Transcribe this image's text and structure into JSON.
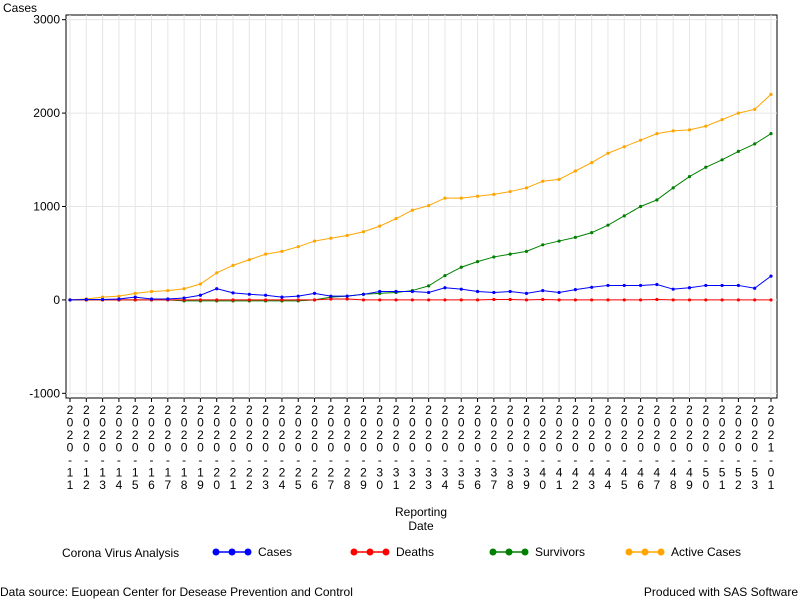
{
  "chart_data": {
    "type": "line",
    "ylabel": "Cases",
    "xlabel_line1": "Reporting",
    "xlabel_line2": "Date",
    "ylim": [
      -1050,
      3050
    ],
    "yticks": [
      "-1000",
      "0",
      "1000",
      "2000",
      "3000"
    ],
    "grid": true,
    "x_tick_labels": [
      "2020-11",
      "2020-12",
      "2020-13",
      "2020-14",
      "2020-15",
      "2020-16",
      "2020-17",
      "2020-18",
      "2020-19",
      "2020-20",
      "2020-21",
      "2020-22",
      "2020-23",
      "2020-24",
      "2020-25",
      "2020-26",
      "2020-27",
      "2020-28",
      "2020-29",
      "2020-30",
      "2020-31",
      "2020-32",
      "2020-33",
      "2020-34",
      "2020-35",
      "2020-36",
      "2020-37",
      "2020-38",
      "2020-39",
      "2020-40",
      "2020-41",
      "2020-42",
      "2020-43",
      "2020-44",
      "2020-45",
      "2020-46",
      "2020-47",
      "2020-48",
      "2020-49",
      "2020-50",
      "2020-51",
      "2020-52",
      "2020-53",
      "2021-01"
    ],
    "legend_title": "Corona Virus Analysis",
    "series": [
      {
        "name": "Cases",
        "color": "#0000ff",
        "values": [
          0,
          5,
          5,
          10,
          30,
          10,
          10,
          20,
          50,
          120,
          75,
          60,
          50,
          30,
          40,
          70,
          40,
          40,
          60,
          90,
          90,
          90,
          80,
          130,
          115,
          90,
          80,
          90,
          70,
          100,
          80,
          110,
          135,
          155,
          155,
          155,
          165,
          115,
          130,
          155,
          155,
          155,
          125,
          255
        ]
      },
      {
        "name": "Deaths",
        "color": "#ff0000",
        "values": [
          0,
          0,
          0,
          0,
          0,
          0,
          0,
          0,
          0,
          0,
          0,
          0,
          0,
          0,
          0,
          0,
          10,
          10,
          0,
          0,
          0,
          0,
          0,
          0,
          0,
          0,
          5,
          5,
          0,
          5,
          0,
          0,
          0,
          0,
          0,
          0,
          5,
          0,
          0,
          0,
          0,
          0,
          0,
          0
        ]
      },
      {
        "name": "Survivors",
        "color": "#008000",
        "values": [
          0,
          0,
          0,
          0,
          0,
          0,
          0,
          -10,
          -10,
          -10,
          -10,
          -10,
          -10,
          -10,
          -10,
          0,
          30,
          40,
          60,
          70,
          80,
          100,
          150,
          260,
          350,
          410,
          460,
          490,
          520,
          590,
          630,
          670,
          720,
          800,
          900,
          1000,
          1070,
          1200,
          1320,
          1420,
          1500,
          1590,
          1670,
          1780
        ]
      },
      {
        "name": "Active Cases",
        "color": "#ffa500",
        "values": [
          0,
          10,
          30,
          40,
          70,
          90,
          100,
          120,
          170,
          290,
          370,
          430,
          490,
          520,
          570,
          630,
          660,
          690,
          730,
          790,
          870,
          960,
          1010,
          1090,
          1090,
          1110,
          1130,
          1160,
          1200,
          1270,
          1290,
          1380,
          1470,
          1570,
          1640,
          1710,
          1780,
          1810,
          1820,
          1860,
          1930,
          2000,
          2040,
          2200
        ]
      }
    ]
  },
  "footer": {
    "left": "Data source: Euopean Center for Desease Prevention and Control",
    "right": "Produced with SAS Software"
  }
}
